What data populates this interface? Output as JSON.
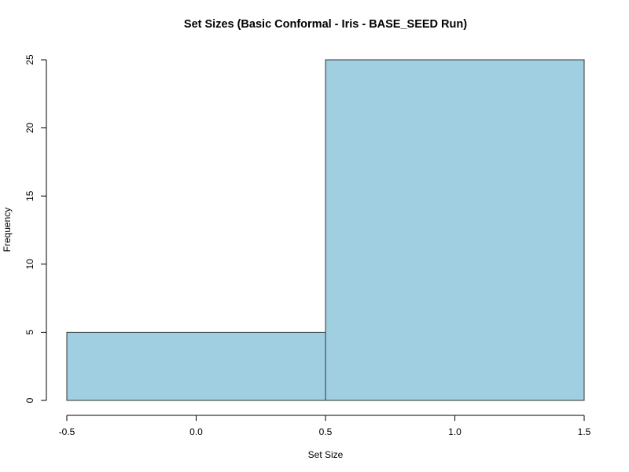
{
  "chart_data": {
    "type": "bar",
    "title": "Set Sizes (Basic Conformal - Iris - BASE_SEED Run)",
    "xlabel": "Set Size",
    "ylabel": "Frequency",
    "bins": [
      {
        "x0": -0.5,
        "x1": 0.5,
        "count": 5
      },
      {
        "x0": 0.5,
        "x1": 1.5,
        "count": 25
      }
    ],
    "xlim": [
      -0.5,
      1.5
    ],
    "ylim": [
      0,
      25
    ],
    "x_ticks": [
      -0.5,
      0.0,
      0.5,
      1.0,
      1.5
    ],
    "x_tick_labels": [
      "-0.5",
      "0.0",
      "0.5",
      "1.0",
      "1.5"
    ],
    "y_ticks": [
      0,
      5,
      10,
      15,
      20,
      25
    ],
    "y_tick_labels": [
      "0",
      "5",
      "10",
      "15",
      "20",
      "25"
    ],
    "bar_color": "#9fcfe0",
    "grid": false
  }
}
